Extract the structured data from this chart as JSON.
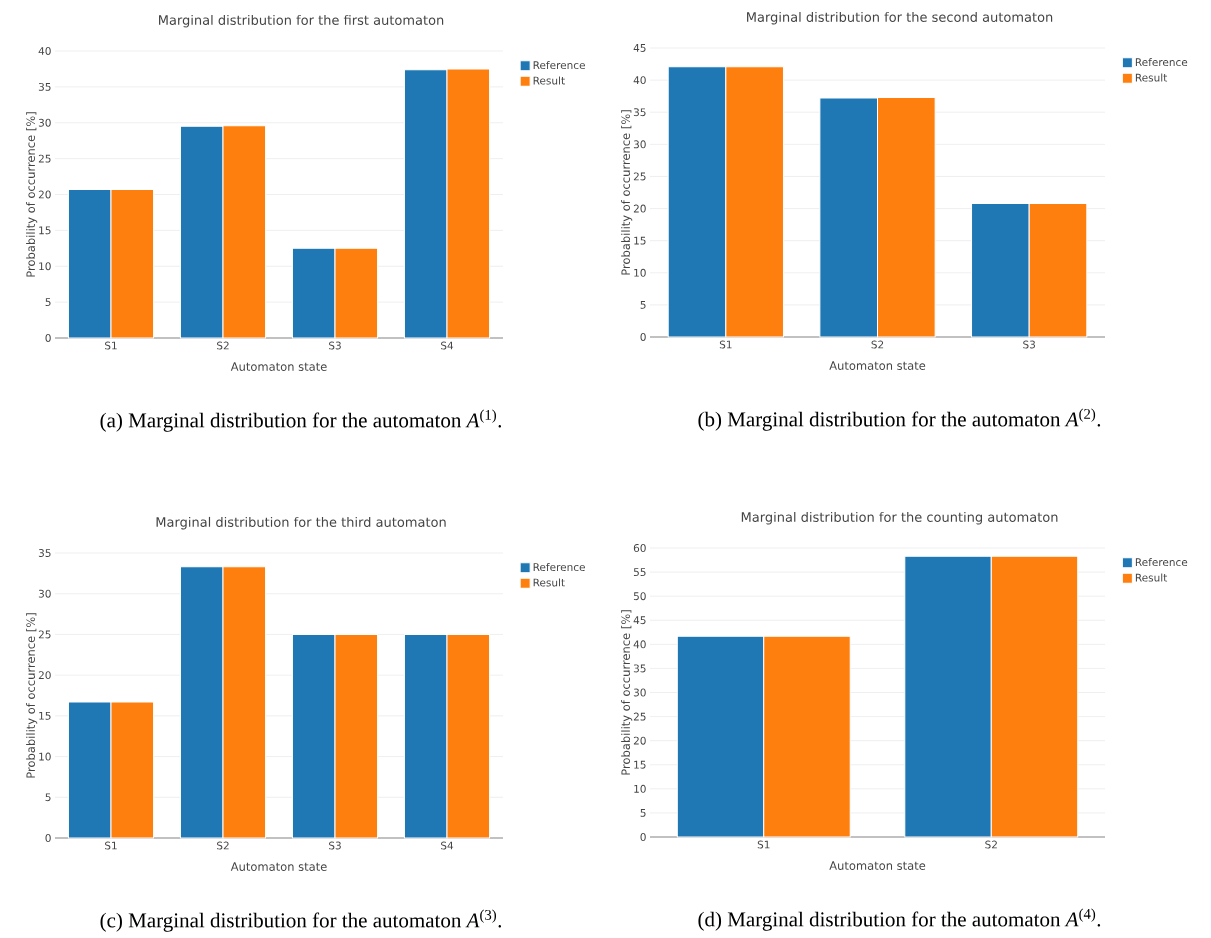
{
  "chart_data": [
    {
      "type": "bar",
      "title": "Marginal distribution for the first automaton",
      "xlabel": "Automaton state",
      "ylabel": "Probability of occurrence [%]",
      "categories": [
        "S1",
        "S2",
        "S3",
        "S4"
      ],
      "series": [
        {
          "name": "Reference",
          "color": "#1f77b4",
          "values": [
            20.7,
            29.5,
            12.5,
            37.4
          ]
        },
        {
          "name": "Result",
          "color": "#ff7f0e",
          "values": [
            20.7,
            29.6,
            12.5,
            37.5
          ]
        }
      ],
      "ylim": [
        0,
        40
      ],
      "yticks": [
        0,
        5,
        10,
        15,
        20,
        25,
        30,
        35,
        40
      ],
      "grid": "y",
      "legend": "top right",
      "annotations": [
        "(a) Marginal distribution for the automaton *A*$^{(1)}$."
      ]
    },
    {
      "type": "bar",
      "title": "Marginal distribution for the second automaton",
      "xlabel": "Automaton state",
      "ylabel": "Probability of occurrence [%]",
      "categories": [
        "S1",
        "S2",
        "S3"
      ],
      "series": [
        {
          "name": "Reference",
          "color": "#1f77b4",
          "values": [
            42.1,
            37.2,
            20.8
          ]
        },
        {
          "name": "Result",
          "color": "#ff7f0e",
          "values": [
            42.1,
            37.3,
            20.8
          ]
        }
      ],
      "ylim": [
        0,
        45
      ],
      "yticks": [
        0,
        5,
        10,
        15,
        20,
        25,
        30,
        35,
        40,
        45
      ],
      "grid": "y",
      "legend": "top right",
      "annotations": [
        "(b) Marginal distribution for the automaton *A*$^{(2)}$."
      ]
    },
    {
      "type": "bar",
      "title": "Marginal distribution for the third automaton",
      "xlabel": "Automaton state",
      "ylabel": "Probability of occurrence [%]",
      "categories": [
        "S1",
        "S2",
        "S3",
        "S4"
      ],
      "series": [
        {
          "name": "Reference",
          "color": "#1f77b4",
          "values": [
            16.7,
            33.3,
            25,
            25
          ]
        },
        {
          "name": "Result",
          "color": "#ff7f0e",
          "values": [
            16.7,
            33.3,
            25,
            25
          ]
        }
      ],
      "ylim": [
        0,
        35
      ],
      "yticks": [
        0,
        5,
        10,
        15,
        20,
        25,
        30,
        35
      ],
      "grid": "y",
      "legend": "top right",
      "annotations": [
        "(c) Marginal distribution for the automaton *A*$^{(3)}$."
      ]
    },
    {
      "type": "bar",
      "title": "Marginal distribution for the counting automaton",
      "xlabel": "Automaton state",
      "ylabel": "Probability of occurrence [%]",
      "categories": [
        "S1",
        "S2"
      ],
      "series": [
        {
          "name": "Reference",
          "color": "#1f77b4",
          "values": [
            41.7,
            58.3
          ]
        },
        {
          "name": "Result",
          "color": "#ff7f0e",
          "values": [
            41.7,
            58.3
          ]
        }
      ],
      "ylim": [
        0,
        60
      ],
      "yticks": [
        0,
        5,
        10,
        15,
        20,
        25,
        30,
        35,
        40,
        45,
        50,
        55,
        60
      ],
      "grid": "y",
      "legend": "top right",
      "annotations": [
        "(d) Marginal distribution for the automaton *A*$^{(4)}$."
      ]
    }
  ]
}
